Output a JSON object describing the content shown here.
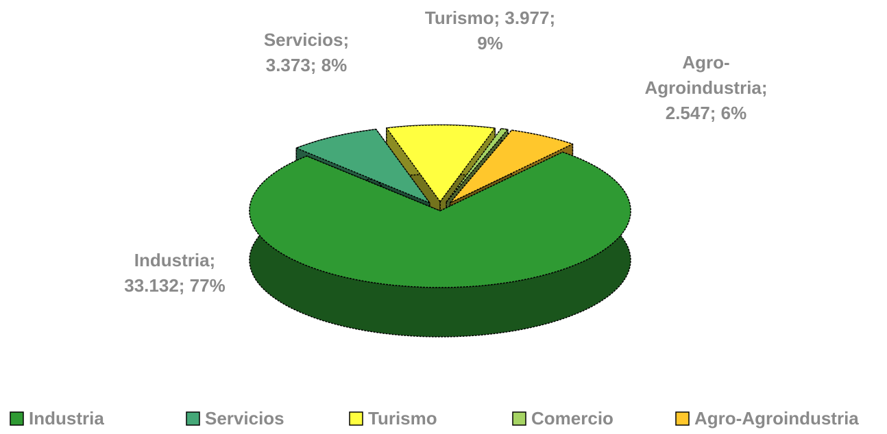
{
  "chart_data": {
    "type": "pie3d",
    "categories": [
      "Industria",
      "Servicios",
      "Turismo",
      "Comercio",
      "Agro-Agroindustria"
    ],
    "values": [
      33132,
      3373,
      3977,
      250,
      2547
    ],
    "data_labels": [
      [
        "Industria;",
        "33.132; 77%"
      ],
      [
        "Servicios;",
        "3.373; 8%"
      ],
      [
        "Turismo; 3.977;",
        "9%"
      ],
      null,
      [
        "Agro-",
        "Agroindustria;",
        "2.547; 6%"
      ]
    ],
    "colors": [
      "#2f9a33",
      "#45a878",
      "#ffff40",
      "#a6d464",
      "#ffc72c"
    ],
    "legend": "bottom"
  }
}
